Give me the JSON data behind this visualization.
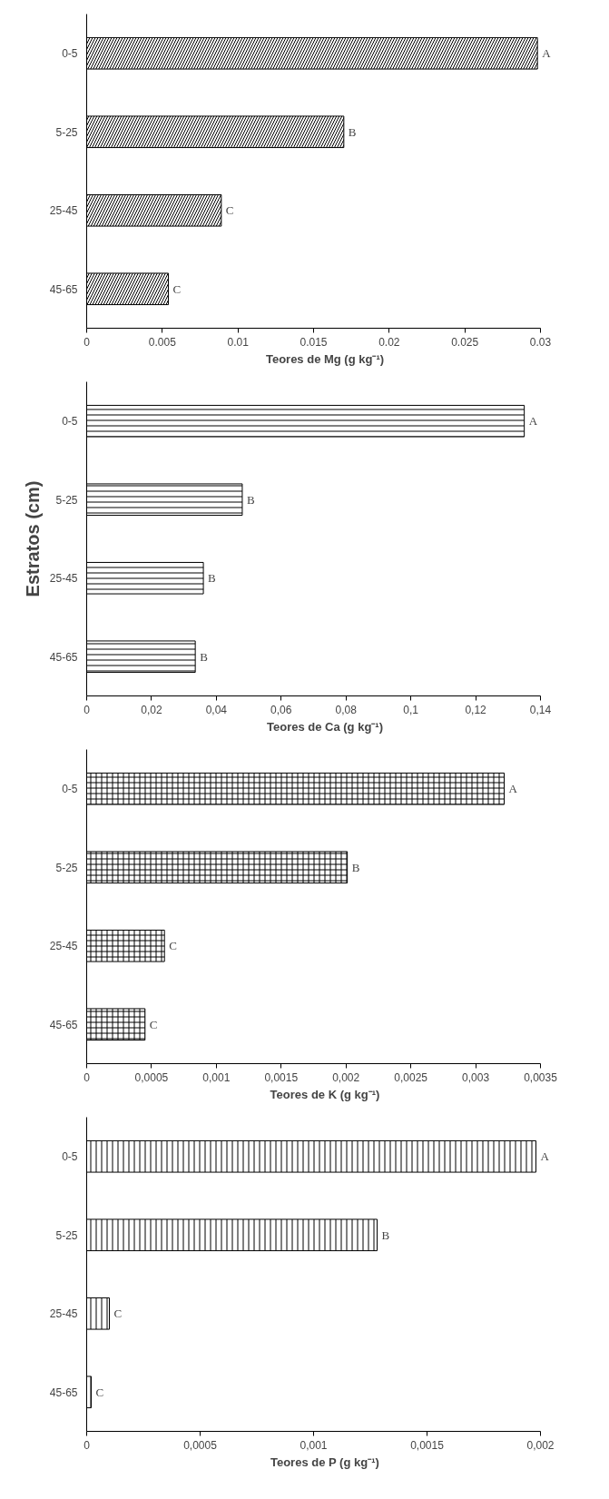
{
  "chart_data": [
    {
      "type": "bar",
      "orientation": "horizontal",
      "categories": [
        "0-5",
        "5-25",
        "25-45",
        "45-65"
      ],
      "values": [
        0.0298,
        0.017,
        0.0089,
        0.0054
      ],
      "color": "#ffffff",
      "value_labels": [
        "A",
        "B",
        "C",
        "C"
      ],
      "xlabel": "Teores de Mg (g kg⁻¹)",
      "xlim": [
        0,
        0.03
      ],
      "xticks": [
        0,
        0.005,
        0.01,
        0.015,
        0.02,
        0.025,
        0.03
      ],
      "grid": false
    },
    {
      "type": "bar",
      "orientation": "horizontal",
      "categories": [
        "0-5",
        "5-25",
        "25-45",
        "45-65"
      ],
      "values": [
        0.135,
        0.048,
        0.036,
        0.0335
      ],
      "color": "#ffffff",
      "value_labels": [
        "A",
        "B",
        "B",
        "B"
      ],
      "xlabel": "Teores de Ca (g kg⁻¹)",
      "ylabel": "Estratos (cm)",
      "xlim": [
        0,
        0.14
      ],
      "xticks": [
        0,
        {
          "value": 0.02,
          "label": "0,02"
        },
        {
          "value": 0.04,
          "label": "0,04"
        },
        {
          "value": 0.06,
          "label": "0,06"
        },
        {
          "value": 0.08,
          "label": "0,08"
        },
        {
          "value": 0.1,
          "label": "0,1"
        },
        {
          "value": 0.12,
          "label": "0,12"
        },
        {
          "value": 0.14,
          "label": "0,14"
        }
      ],
      "grid": false
    },
    {
      "type": "bar",
      "orientation": "horizontal",
      "categories": [
        "0-5",
        "5-25",
        "25-45",
        "45-65"
      ],
      "values": [
        0.00322,
        0.00201,
        0.0006,
        0.00045
      ],
      "color": "#ffffff",
      "value_labels": [
        "A",
        "B",
        "C",
        "C"
      ],
      "xlabel": "Teores de K (g kg⁻¹)",
      "xlim": [
        0,
        0.0035
      ],
      "xticks": [
        {
          "value": 0,
          "label": "0"
        },
        {
          "value": 0.0005,
          "label": "0,0005"
        },
        {
          "value": 0.001,
          "label": "0,001"
        },
        {
          "value": 0.0015,
          "label": "0,0015"
        },
        {
          "value": 0.002,
          "label": "0,002"
        },
        {
          "value": 0.0025,
          "label": "0,0025"
        },
        {
          "value": 0.003,
          "label": "0,003"
        },
        {
          "value": 0.0035,
          "label": "0,0035"
        }
      ],
      "grid": false
    },
    {
      "type": "bar",
      "orientation": "horizontal",
      "categories": [
        "0-5",
        "5-25",
        "25-45",
        "45-65"
      ],
      "values": [
        0.00198,
        0.00128,
        0.0001,
        2e-05
      ],
      "color": "#ffffff",
      "value_labels": [
        "A",
        "B",
        "C",
        "C"
      ],
      "xlabel": "Teores de P (g kg⁻¹)",
      "xlim": [
        0,
        0.002
      ],
      "xticks": [
        {
          "value": 0,
          "label": "0"
        },
        {
          "value": 0.0005,
          "label": "0,0005"
        },
        {
          "value": 0.001,
          "label": "0,001"
        },
        {
          "value": 0.0015,
          "label": "0,0015"
        },
        {
          "value": 0.002,
          "label": "0,002"
        }
      ],
      "grid": false
    }
  ]
}
